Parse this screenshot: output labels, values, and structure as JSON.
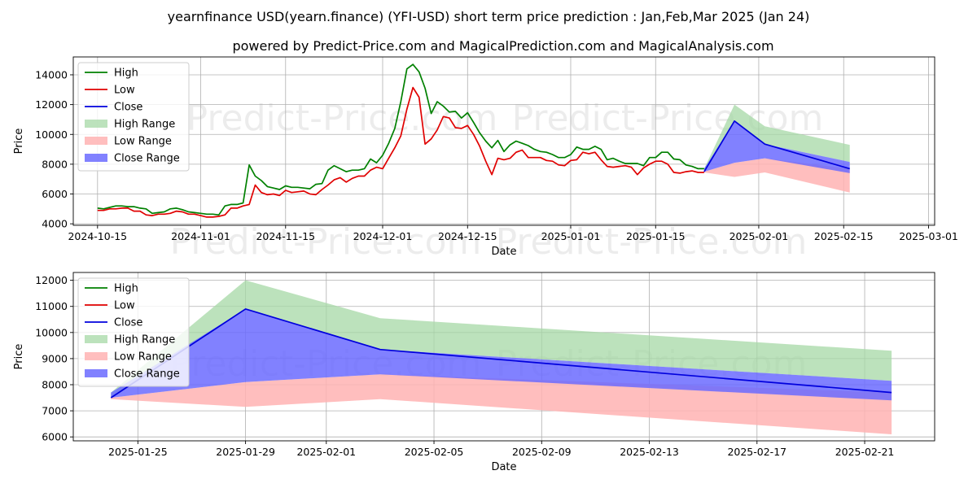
{
  "title_line1": "yearnfinance USD(yearn.finance) (YFI-USD) short term price prediction : Jan,Feb,Mar 2025 (Jan 24)",
  "title_line2": "powered by Predict-Price.com and MagicalPrediction.com and MagicalAnalysis.com",
  "watermark": "Predict-Price.com",
  "colors": {
    "high": "#008000",
    "low": "#e00000",
    "close": "#0000dd",
    "high_range": "#a6d8a6",
    "low_range": "#ffb3b3",
    "close_range": "#6b6bff"
  },
  "chart_data": [
    {
      "type": "line",
      "title": "",
      "xlabel": "Date",
      "ylabel": "Price",
      "xlim": [
        -4,
        138
      ],
      "ylim": [
        3900,
        15200
      ],
      "grid": true,
      "x_ticks": [
        {
          "x": 0,
          "label": "2024-10-15"
        },
        {
          "x": 17,
          "label": "2024-11-01"
        },
        {
          "x": 31,
          "label": "2024-11-15"
        },
        {
          "x": 47,
          "label": "2024-12-01"
        },
        {
          "x": 61,
          "label": "2024-12-15"
        },
        {
          "x": 78,
          "label": "2025-01-01"
        },
        {
          "x": 92,
          "label": "2025-01-15"
        },
        {
          "x": 109,
          "label": "2025-02-01"
        },
        {
          "x": 123,
          "label": "2025-02-15"
        },
        {
          "x": 137,
          "label": "2025-03-01"
        }
      ],
      "y_ticks": [
        {
          "y": 4000,
          "label": "4000"
        },
        {
          "y": 6000,
          "label": "6000"
        },
        {
          "y": 8000,
          "label": "8000"
        },
        {
          "y": 10000,
          "label": "10000"
        },
        {
          "y": 12000,
          "label": "12000"
        },
        {
          "y": 14000,
          "label": "14000"
        }
      ],
      "legend": [
        "High",
        "Low",
        "Close",
        "High Range",
        "Low Range",
        "Close Range"
      ],
      "legend_position": "top-left",
      "series": [
        {
          "name": "High",
          "x_start": 0,
          "values": [
            5050,
            5000,
            5100,
            5200,
            5200,
            5150,
            5150,
            5050,
            5000,
            4700,
            4750,
            4800,
            5000,
            5050,
            4950,
            4800,
            4750,
            4700,
            4650,
            4650,
            4600,
            5200,
            5300,
            5300,
            5400,
            7950,
            7200,
            6900,
            6500,
            6400,
            6300,
            6550,
            6450,
            6450,
            6400,
            6350,
            6650,
            6700,
            7600,
            7900,
            7700,
            7500,
            7600,
            7600,
            7700,
            8350,
            8100,
            8600,
            9400,
            10400,
            12200,
            14400,
            14700,
            14200,
            13100,
            11400,
            12200,
            11900,
            11500,
            11550,
            11100,
            11450,
            10800,
            10100,
            9550,
            9100,
            9600,
            8850,
            9300,
            9550,
            9400,
            9250,
            9000,
            8850,
            8800,
            8650,
            8450,
            8450,
            8650,
            9150,
            9000,
            9000,
            9200,
            9000,
            8300,
            8400,
            8200,
            8050,
            8050,
            8050,
            7900,
            8450,
            8450,
            8800,
            8800,
            8350,
            8300,
            7950,
            7850,
            7700,
            7700
          ]
        },
        {
          "name": "Low",
          "x_start": 0,
          "values": [
            4900,
            4900,
            5000,
            5000,
            5050,
            5050,
            4850,
            4850,
            4600,
            4550,
            4650,
            4650,
            4700,
            4850,
            4800,
            4650,
            4650,
            4550,
            4450,
            4450,
            4500,
            4600,
            5050,
            5050,
            5200,
            5300,
            6600,
            6100,
            5950,
            6000,
            5900,
            6250,
            6100,
            6150,
            6200,
            6000,
            5950,
            6300,
            6600,
            6950,
            7100,
            6800,
            7050,
            7200,
            7200,
            7600,
            7800,
            7700,
            8400,
            9100,
            9900,
            11700,
            13150,
            12500,
            9350,
            9700,
            10300,
            11200,
            11100,
            10450,
            10400,
            10600,
            10000,
            9200,
            8200,
            7300,
            8400,
            8300,
            8400,
            8800,
            8950,
            8450,
            8450,
            8450,
            8250,
            8200,
            7950,
            7900,
            8250,
            8300,
            8800,
            8700,
            8800,
            8300,
            7850,
            7800,
            7850,
            7900,
            7800,
            7300,
            7750,
            8000,
            8200,
            8200,
            8000,
            7450,
            7400,
            7500,
            7550,
            7450,
            7450
          ]
        },
        {
          "name": "Close",
          "x_start": 100,
          "values": [
            7500,
            10900,
            9350,
            7700
          ],
          "x": [
            100,
            105,
            110,
            124
          ]
        }
      ],
      "ranges": [
        {
          "name": "High Range",
          "x": [
            100,
            105,
            110,
            124
          ],
          "upper": [
            7700,
            12000,
            10550,
            9300
          ],
          "lower": [
            7500,
            10900,
            9350,
            8150
          ]
        },
        {
          "name": "Low Range",
          "x": [
            100,
            105,
            110,
            124
          ],
          "upper": [
            7500,
            8100,
            8400,
            7700
          ],
          "lower": [
            7450,
            7150,
            7450,
            6100
          ]
        },
        {
          "name": "Close Range",
          "x": [
            100,
            105,
            110,
            124
          ],
          "upper": [
            7700,
            10900,
            9350,
            8150
          ],
          "lower": [
            7500,
            8100,
            8400,
            7400
          ]
        }
      ]
    },
    {
      "type": "line",
      "title": "",
      "xlabel": "Date",
      "ylabel": "Price",
      "xlim": [
        -1.4,
        30.6
      ],
      "ylim": [
        5850,
        12300
      ],
      "grid": true,
      "x_ticks": [
        {
          "x": 1,
          "label": "2025-01-25"
        },
        {
          "x": 5,
          "label": "2025-01-29"
        },
        {
          "x": 8,
          "label": "2025-02-01"
        },
        {
          "x": 12,
          "label": "2025-02-05"
        },
        {
          "x": 16,
          "label": "2025-02-09"
        },
        {
          "x": 20,
          "label": "2025-02-13"
        },
        {
          "x": 24,
          "label": "2025-02-17"
        },
        {
          "x": 28,
          "label": "2025-02-21"
        }
      ],
      "y_ticks": [
        {
          "y": 6000,
          "label": "6000"
        },
        {
          "y": 7000,
          "label": "7000"
        },
        {
          "y": 8000,
          "label": "8000"
        },
        {
          "y": 9000,
          "label": "9000"
        },
        {
          "y": 10000,
          "label": "10000"
        },
        {
          "y": 11000,
          "label": "11000"
        },
        {
          "y": 12000,
          "label": "12000"
        }
      ],
      "legend": [
        "High",
        "Low",
        "Close",
        "High Range",
        "Low Range",
        "Close Range"
      ],
      "legend_position": "top-left",
      "series": [
        {
          "name": "Close",
          "x": [
            0,
            5,
            10,
            29
          ],
          "values": [
            7500,
            10900,
            9350,
            7700
          ]
        }
      ],
      "ranges": [
        {
          "name": "High Range",
          "x": [
            0,
            5,
            10,
            29
          ],
          "upper": [
            7700,
            12000,
            10550,
            9300
          ],
          "lower": [
            7500,
            10900,
            9350,
            8150
          ]
        },
        {
          "name": "Low Range",
          "x": [
            0,
            5,
            10,
            29
          ],
          "upper": [
            7500,
            8100,
            8400,
            7700
          ],
          "lower": [
            7450,
            7150,
            7450,
            6100
          ]
        },
        {
          "name": "Close Range",
          "x": [
            0,
            5,
            10,
            29
          ],
          "upper": [
            7700,
            10900,
            9350,
            8150
          ],
          "lower": [
            7500,
            8100,
            8400,
            7400
          ]
        }
      ]
    }
  ]
}
